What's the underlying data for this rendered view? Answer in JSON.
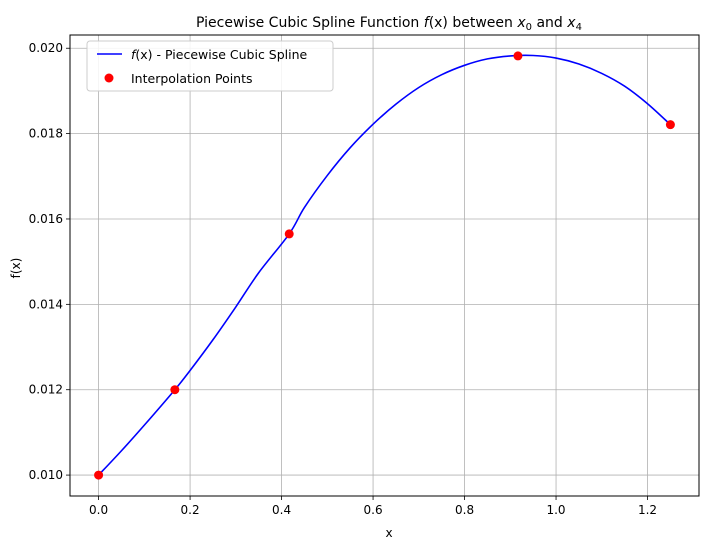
{
  "chart_data": {
    "type": "line",
    "title": {
      "prefix": "Piecewise Cubic Spline Function ",
      "func": "f",
      "func_arg": "(x)",
      "mid": " between ",
      "var0": "x",
      "sub0": "0",
      "and": " and ",
      "var4": "x",
      "sub4": "4"
    },
    "xlabel": "x",
    "ylabel": "f(x)",
    "xlim": [
      -0.0625,
      1.3125
    ],
    "ylim": [
      0.00951,
      0.02031
    ],
    "xticks": [
      0.0,
      0.2,
      0.4,
      0.6,
      0.8,
      1.0,
      1.2
    ],
    "xtick_labels": [
      "0.0",
      "0.2",
      "0.4",
      "0.6",
      "0.8",
      "1.0",
      "1.2"
    ],
    "yticks": [
      0.01,
      0.012,
      0.014,
      0.016,
      0.018,
      0.02
    ],
    "ytick_labels": [
      "0.010",
      "0.012",
      "0.014",
      "0.016",
      "0.018",
      "0.020"
    ],
    "grid": true,
    "legend_position": "top-left",
    "series": [
      {
        "name": "f(x) - Piecewise Cubic Spline",
        "kind": "line",
        "color": "#0000ff",
        "x": [
          0.0,
          0.05,
          0.1,
          0.1667,
          0.2,
          0.25,
          0.3,
          0.35,
          0.4167,
          0.45,
          0.5,
          0.55,
          0.6,
          0.65,
          0.7,
          0.75,
          0.8,
          0.85,
          0.9,
          0.95,
          1.0,
          1.05,
          1.1,
          1.15,
          1.2,
          1.25
        ],
        "y": [
          0.01,
          0.01057,
          0.01117,
          0.012,
          0.01245,
          0.01317,
          0.01394,
          0.01474,
          0.01565,
          0.01627,
          0.01702,
          0.01767,
          0.01822,
          0.01869,
          0.01908,
          0.01938,
          0.0196,
          0.01975,
          0.01982,
          0.01983,
          0.01977,
          0.01963,
          0.01941,
          0.01911,
          0.0187,
          0.01821
        ]
      },
      {
        "name": "Interpolation Points",
        "kind": "scatter",
        "color": "#ff0000",
        "x": [
          0.0,
          0.1667,
          0.4167,
          0.9167,
          1.25
        ],
        "y": [
          0.01,
          0.012,
          0.01565,
          0.01982,
          0.01821
        ]
      }
    ],
    "legend": {
      "line_label_func": "f",
      "line_label_arg": "(x)",
      "line_label_rest": " - Piecewise Cubic Spline",
      "points_label": "Interpolation Points"
    }
  }
}
